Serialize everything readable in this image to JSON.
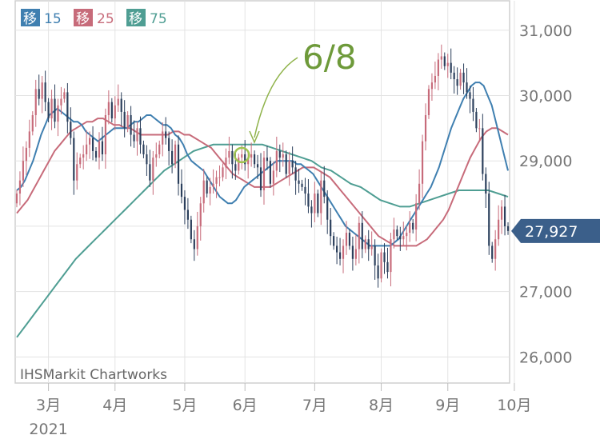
{
  "chart_data": {
    "type": "candlestick",
    "credit": "IHSMarkit Chartworks",
    "legend": [
      {
        "label": "移",
        "value": "15",
        "color": "#3f7fb0"
      },
      {
        "label": "移",
        "value": "25",
        "color": "#c76b7a"
      },
      {
        "label": "移",
        "value": "75",
        "color": "#4f9e93"
      }
    ],
    "y_ticks": [
      {
        "value": 31000,
        "label": "31,000"
      },
      {
        "value": 30000,
        "label": "30,000"
      },
      {
        "value": 29000,
        "label": "29,000"
      },
      {
        "value": 27000,
        "label": "27,000"
      },
      {
        "value": 26000,
        "label": "26,000"
      }
    ],
    "ylim": [
      25600,
      31450
    ],
    "x_ticks": [
      {
        "t": 10,
        "label": "3月",
        "sub": "2021"
      },
      {
        "t": 31,
        "label": "4月"
      },
      {
        "t": 53,
        "label": "5月"
      },
      {
        "t": 72,
        "label": "6月"
      },
      {
        "t": 94,
        "label": "7月"
      },
      {
        "t": 115,
        "label": "8月"
      },
      {
        "t": 136,
        "label": "9月"
      },
      {
        "t": 157,
        "label": "10月"
      }
    ],
    "last_value": {
      "value": 27927,
      "label": "27,927",
      "color": "#3b5f8a"
    },
    "annotation": {
      "label": "6/8",
      "t": 71,
      "value": 29090,
      "color": "#6e9a3a"
    },
    "colors": {
      "up": "#c76b7a",
      "down": "#2b3f5c",
      "ma15": "#3f7fb0",
      "ma25": "#c76b7a",
      "ma75": "#4f9e93"
    },
    "closes": [
      28500,
      28700,
      29000,
      29200,
      29450,
      29700,
      30100,
      29950,
      30200,
      29900,
      29650,
      29950,
      29600,
      29850,
      29950,
      30050,
      29600,
      29350,
      28700,
      28950,
      29050,
      29100,
      29250,
      29350,
      29150,
      29050,
      29300,
      29100,
      29700,
      29900,
      29650,
      29850,
      29950,
      29750,
      29500,
      29700,
      29400,
      29300,
      29500,
      29250,
      29100,
      28950,
      28700,
      29050,
      29100,
      29250,
      29450,
      29350,
      29150,
      28950,
      29250,
      28650,
      28450,
      28250,
      28100,
      27800,
      27650,
      28000,
      28350,
      28700,
      28500,
      28600,
      28650,
      28750,
      28750,
      28900,
      29050,
      29150,
      28950,
      28850,
      29050,
      29100,
      28950,
      29050,
      29100,
      28950,
      28900,
      28550,
      29050,
      29000,
      28650,
      28850,
      29150,
      29050,
      29100,
      28800,
      29000,
      28900,
      28700,
      28650,
      28600,
      28500,
      28300,
      28200,
      28500,
      28200,
      28700,
      28450,
      28100,
      27850,
      27700,
      27600,
      27500,
      27700,
      27900,
      27700,
      27500,
      27650,
      28050,
      27650,
      27800,
      27650,
      27700,
      27400,
      27200,
      27600,
      27450,
      27300,
      27800,
      27950,
      27850,
      27800,
      27850,
      27900,
      28050,
      27950,
      28350,
      28650,
      29300,
      29700,
      30100,
      30200,
      30300,
      30550,
      30600,
      30450,
      30500,
      30350,
      30250,
      30150,
      30350,
      30200,
      30050,
      29950,
      29750,
      29500,
      29500,
      28800,
      28500,
      27700,
      27500,
      27800,
      28100,
      28300,
      28000,
      27927
    ],
    "ma15": [
      28550,
      28600,
      28700,
      28850,
      29000,
      29200,
      29400,
      29550,
      29700,
      29750,
      29800,
      29750,
      29700,
      29650,
      29600,
      29600,
      29550,
      29450,
      29400,
      29350,
      29300,
      29350,
      29400,
      29450,
      29500,
      29500,
      29500,
      29500,
      29550,
      29600,
      29600,
      29650,
      29700,
      29700,
      29650,
      29600,
      29550,
      29550,
      29500,
      29400,
      29350,
      29250,
      29100,
      29000,
      28950,
      28900,
      28850,
      28750,
      28650,
      28550,
      28450,
      28400,
      28350,
      28350,
      28400,
      28500,
      28600,
      28650,
      28700,
      28750,
      28800,
      28850,
      28900,
      28950,
      29000,
      29000,
      29000,
      29000,
      29000,
      28950,
      28950,
      28900,
      28850,
      28800,
      28700,
      28600,
      28500,
      28400,
      28300,
      28200,
      28100,
      28000,
      27950,
      27900,
      27850,
      27800,
      27750,
      27700,
      27700,
      27700,
      27700,
      27700,
      27700,
      27750,
      27800,
      27900,
      28000,
      28100,
      28200,
      28300,
      28400,
      28500,
      28600,
      28750,
      28900,
      29100,
      29300,
      29500,
      29650,
      29800,
      29950,
      30050,
      30150,
      30200,
      30200,
      30150,
      30000,
      29850,
      29600,
      29350,
      29100,
      28850
    ],
    "ma15_start": 0,
    "ma25": [
      28200,
      28300,
      28400,
      28550,
      28700,
      28850,
      29000,
      29150,
      29250,
      29350,
      29450,
      29500,
      29550,
      29600,
      29600,
      29650,
      29650,
      29600,
      29550,
      29550,
      29500,
      29500,
      29450,
      29400,
      29400,
      29400,
      29400,
      29400,
      29400,
      29450,
      29450,
      29400,
      29400,
      29350,
      29300,
      29250,
      29200,
      29100,
      29000,
      28900,
      28800,
      28750,
      28700,
      28650,
      28600,
      28600,
      28600,
      28600,
      28650,
      28700,
      28750,
      28800,
      28850,
      28900,
      28900,
      28900,
      28850,
      28800,
      28750,
      28650,
      28550,
      28450,
      28350,
      28250,
      28150,
      28050,
      27950,
      27850,
      27800,
      27750,
      27700,
      27700,
      27700,
      27700,
      27700,
      27750,
      27800,
      27900,
      28000,
      28100,
      28250,
      28450,
      28650,
      28850,
      29050,
      29200,
      29350,
      29450,
      29500,
      29500,
      29450,
      29400
    ],
    "ma25_start": 0,
    "ma75": [
      26300,
      26500,
      26700,
      26900,
      27100,
      27300,
      27500,
      27650,
      27800,
      27950,
      28100,
      28250,
      28400,
      28550,
      28700,
      28850,
      28950,
      29050,
      29150,
      29200,
      29250,
      29250,
      29250,
      29250,
      29250,
      29250,
      29200,
      29150,
      29100,
      29050,
      29000,
      28900,
      28850,
      28750,
      28650,
      28600,
      28500,
      28400,
      28350,
      28300,
      28300,
      28350,
      28400,
      28450,
      28500,
      28550,
      28550,
      28550,
      28550,
      28500,
      28450
    ],
    "ma75_start": 0
  }
}
